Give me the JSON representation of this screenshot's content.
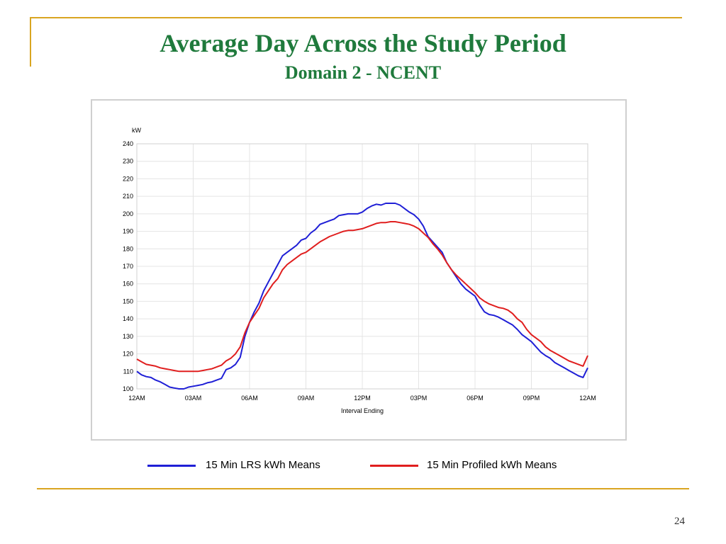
{
  "slide": {
    "title": "Average Day Across the Study Period",
    "subtitle": "Domain 2 - NCENT",
    "page_number": "24"
  },
  "colors": {
    "accent": "#d9a521",
    "title": "#1f7a3c"
  },
  "legend": [
    {
      "label": "15 Min LRS kWh Means",
      "color": "#1f1fd6"
    },
    {
      "label": "15 Min Profiled kWh Means",
      "color": "#e01e1e"
    }
  ],
  "chart_data": {
    "type": "line",
    "xlabel": "Interval Ending",
    "ylabel": "kW",
    "x_ticks": [
      "12AM",
      "03AM",
      "06AM",
      "09AM",
      "12PM",
      "03PM",
      "06PM",
      "09PM",
      "12AM"
    ],
    "xlim": [
      0,
      24
    ],
    "ylim": [
      100,
      240
    ],
    "y_ticks": [
      100,
      110,
      120,
      130,
      140,
      150,
      160,
      170,
      180,
      190,
      200,
      210,
      220,
      230,
      240
    ],
    "grid": true,
    "series": [
      {
        "name": "15 Min LRS kWh Means",
        "color": "#1f1fd6",
        "points": [
          [
            0,
            110
          ],
          [
            0.25,
            108
          ],
          [
            0.5,
            107
          ],
          [
            0.75,
            106.5
          ],
          [
            1,
            105
          ],
          [
            1.25,
            104
          ],
          [
            1.5,
            102.5
          ],
          [
            1.75,
            101
          ],
          [
            2,
            100.5
          ],
          [
            2.25,
            100
          ],
          [
            2.5,
            100
          ],
          [
            2.75,
            101
          ],
          [
            3,
            101.5
          ],
          [
            3.25,
            102
          ],
          [
            3.5,
            102.5
          ],
          [
            3.75,
            103.5
          ],
          [
            4,
            104
          ],
          [
            4.25,
            105
          ],
          [
            4.5,
            106
          ],
          [
            4.75,
            111
          ],
          [
            5,
            112
          ],
          [
            5.25,
            114
          ],
          [
            5.5,
            118
          ],
          [
            5.75,
            130
          ],
          [
            6,
            138
          ],
          [
            6.25,
            144
          ],
          [
            6.5,
            149
          ],
          [
            6.75,
            156
          ],
          [
            7,
            161
          ],
          [
            7.25,
            166
          ],
          [
            7.5,
            171
          ],
          [
            7.75,
            176
          ],
          [
            8,
            178
          ],
          [
            8.25,
            180
          ],
          [
            8.5,
            182
          ],
          [
            8.75,
            185
          ],
          [
            9,
            186
          ],
          [
            9.25,
            189
          ],
          [
            9.5,
            191
          ],
          [
            9.75,
            194
          ],
          [
            10,
            195
          ],
          [
            10.25,
            196
          ],
          [
            10.5,
            197
          ],
          [
            10.75,
            199
          ],
          [
            11,
            199.5
          ],
          [
            11.25,
            200
          ],
          [
            11.5,
            200
          ],
          [
            11.75,
            200
          ],
          [
            12,
            201
          ],
          [
            12.25,
            203
          ],
          [
            12.5,
            204.5
          ],
          [
            12.75,
            205.5
          ],
          [
            13,
            205
          ],
          [
            13.25,
            206
          ],
          [
            13.5,
            206
          ],
          [
            13.75,
            206
          ],
          [
            14,
            205
          ],
          [
            14.25,
            203
          ],
          [
            14.5,
            201
          ],
          [
            14.75,
            199.5
          ],
          [
            15,
            197
          ],
          [
            15.25,
            193
          ],
          [
            15.5,
            187
          ],
          [
            15.75,
            184
          ],
          [
            16,
            181
          ],
          [
            16.25,
            178
          ],
          [
            16.5,
            172
          ],
          [
            16.75,
            168
          ],
          [
            17,
            164
          ],
          [
            17.25,
            160
          ],
          [
            17.5,
            157
          ],
          [
            17.75,
            155
          ],
          [
            18,
            153
          ],
          [
            18.25,
            148
          ],
          [
            18.5,
            144
          ],
          [
            18.75,
            142.5
          ],
          [
            19,
            142
          ],
          [
            19.25,
            141
          ],
          [
            19.5,
            139.5
          ],
          [
            19.75,
            138
          ],
          [
            20,
            136.5
          ],
          [
            20.25,
            134
          ],
          [
            20.5,
            131
          ],
          [
            20.75,
            129
          ],
          [
            21,
            127
          ],
          [
            21.25,
            124
          ],
          [
            21.5,
            121
          ],
          [
            21.75,
            119
          ],
          [
            22,
            117.5
          ],
          [
            22.25,
            115
          ],
          [
            22.5,
            113.5
          ],
          [
            22.75,
            112
          ],
          [
            23,
            110.5
          ],
          [
            23.25,
            109
          ],
          [
            23.5,
            107.5
          ],
          [
            23.75,
            106.5
          ],
          [
            24,
            112
          ]
        ]
      },
      {
        "name": "15 Min Profiled kWh Means",
        "color": "#e01e1e",
        "points": [
          [
            0,
            117
          ],
          [
            0.25,
            115.5
          ],
          [
            0.5,
            114
          ],
          [
            0.75,
            113.5
          ],
          [
            1,
            113
          ],
          [
            1.25,
            112
          ],
          [
            1.5,
            111.5
          ],
          [
            1.75,
            111
          ],
          [
            2,
            110.5
          ],
          [
            2.25,
            110
          ],
          [
            2.5,
            110
          ],
          [
            2.75,
            110
          ],
          [
            3,
            110
          ],
          [
            3.25,
            110
          ],
          [
            3.5,
            110.5
          ],
          [
            3.75,
            111
          ],
          [
            4,
            111.5
          ],
          [
            4.25,
            112.5
          ],
          [
            4.5,
            113.5
          ],
          [
            4.75,
            116
          ],
          [
            5,
            117.5
          ],
          [
            5.25,
            120
          ],
          [
            5.5,
            124
          ],
          [
            5.75,
            132
          ],
          [
            6,
            138
          ],
          [
            6.25,
            142
          ],
          [
            6.5,
            146
          ],
          [
            6.75,
            152
          ],
          [
            7,
            156
          ],
          [
            7.25,
            160
          ],
          [
            7.5,
            163
          ],
          [
            7.75,
            168
          ],
          [
            8,
            171
          ],
          [
            8.25,
            173
          ],
          [
            8.5,
            175
          ],
          [
            8.75,
            177
          ],
          [
            9,
            178
          ],
          [
            9.25,
            180
          ],
          [
            9.5,
            182
          ],
          [
            9.75,
            184
          ],
          [
            10,
            185.5
          ],
          [
            10.25,
            187
          ],
          [
            10.5,
            188
          ],
          [
            10.75,
            189
          ],
          [
            11,
            190
          ],
          [
            11.25,
            190.5
          ],
          [
            11.5,
            190.5
          ],
          [
            11.75,
            191
          ],
          [
            12,
            191.5
          ],
          [
            12.25,
            192.5
          ],
          [
            12.5,
            193.5
          ],
          [
            12.75,
            194.5
          ],
          [
            13,
            195
          ],
          [
            13.25,
            195
          ],
          [
            13.5,
            195.5
          ],
          [
            13.75,
            195.5
          ],
          [
            14,
            195
          ],
          [
            14.25,
            194.5
          ],
          [
            14.5,
            194
          ],
          [
            14.75,
            193
          ],
          [
            15,
            191.5
          ],
          [
            15.25,
            189
          ],
          [
            15.5,
            186.5
          ],
          [
            15.75,
            183
          ],
          [
            16,
            180
          ],
          [
            16.25,
            176.5
          ],
          [
            16.5,
            172
          ],
          [
            16.75,
            168
          ],
          [
            17,
            165
          ],
          [
            17.25,
            162.5
          ],
          [
            17.5,
            160
          ],
          [
            17.75,
            157.5
          ],
          [
            18,
            155
          ],
          [
            18.25,
            152
          ],
          [
            18.5,
            150
          ],
          [
            18.75,
            148.5
          ],
          [
            19,
            147.5
          ],
          [
            19.25,
            146.5
          ],
          [
            19.5,
            146
          ],
          [
            19.75,
            145
          ],
          [
            20,
            143
          ],
          [
            20.25,
            140
          ],
          [
            20.5,
            138
          ],
          [
            20.75,
            134
          ],
          [
            21,
            131
          ],
          [
            21.25,
            129
          ],
          [
            21.5,
            127
          ],
          [
            21.75,
            124
          ],
          [
            22,
            122
          ],
          [
            22.25,
            120.5
          ],
          [
            22.5,
            119
          ],
          [
            22.75,
            117.5
          ],
          [
            23,
            116
          ],
          [
            23.25,
            115
          ],
          [
            23.5,
            114
          ],
          [
            23.75,
            113
          ],
          [
            24,
            119
          ]
        ]
      }
    ]
  }
}
